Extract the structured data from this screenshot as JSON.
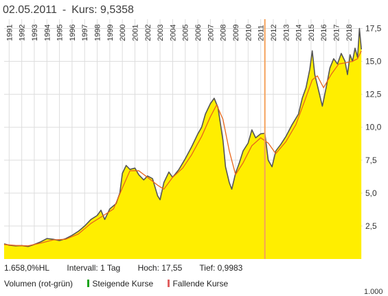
{
  "header": {
    "date": "02.05.2011",
    "separator": "-",
    "price_label": "Kurs: 9,5358"
  },
  "stats": {
    "hl_ratio": "1.658,0%HL",
    "interval": "Intervall: 1 Tag",
    "high": "Hoch:  17,55",
    "low": "Tief: 0,9983"
  },
  "legend": {
    "volume_label": "Volumen (rot-grün)",
    "rising_label": "Steigende Kurse",
    "falling_label": "Fallende Kurse",
    "rising_color": "#1aa31a",
    "falling_color": "#e06060"
  },
  "footer_cutoff": "1.000",
  "colors": {
    "area_fill": "#ffee00",
    "price_line": "#555555",
    "moving_average": "#e8661a",
    "cursor": "#f4a15a",
    "grid": "#dddddd"
  },
  "chart_data": {
    "type": "area",
    "title": "",
    "xlabel": "",
    "ylabel": "",
    "x_ticks": [
      "1991",
      "1992",
      "1993",
      "1994",
      "1995",
      "1996",
      "1997",
      "1998",
      "1999",
      "2000",
      "2001",
      "2002",
      "2003",
      "2004",
      "2005",
      "2006",
      "2007",
      "2008",
      "2009",
      "2010",
      "2011",
      "2012",
      "2013",
      "2014",
      "2015",
      "2016",
      "2017",
      "2018"
    ],
    "y_ticks": [
      "2,5",
      "5,0",
      "7,5",
      "10,0",
      "12,5",
      "15,0",
      "17,5"
    ],
    "y_tick_values": [
      2.5,
      5.0,
      7.5,
      10.0,
      12.5,
      15.0,
      17.5
    ],
    "xlim": [
      1990.6,
      2019.1
    ],
    "ylim": [
      0,
      18.2
    ],
    "grid": true,
    "cursor_x": 2011.33,
    "series": [
      {
        "values": [
          [
            1990.6,
            1.15
          ],
          [
            1991.0,
            1.05
          ],
          [
            1991.5,
            1.0
          ],
          [
            1992.0,
            1.02
          ],
          [
            1992.5,
            0.95
          ],
          [
            1993.0,
            1.1
          ],
          [
            1993.5,
            1.3
          ],
          [
            1994.0,
            1.55
          ],
          [
            1994.5,
            1.5
          ],
          [
            1995.0,
            1.4
          ],
          [
            1995.5,
            1.55
          ],
          [
            1996.0,
            1.8
          ],
          [
            1996.5,
            2.1
          ],
          [
            1997.0,
            2.5
          ],
          [
            1997.5,
            3.0
          ],
          [
            1998.0,
            3.3
          ],
          [
            1998.3,
            3.7
          ],
          [
            1998.6,
            3.0
          ],
          [
            1999.0,
            3.8
          ],
          [
            1999.5,
            4.2
          ],
          [
            1999.8,
            5.0
          ],
          [
            2000.0,
            6.5
          ],
          [
            2000.3,
            7.1
          ],
          [
            2000.6,
            6.8
          ],
          [
            2001.0,
            6.9
          ],
          [
            2001.3,
            6.4
          ],
          [
            2001.7,
            6.0
          ],
          [
            2002.0,
            6.3
          ],
          [
            2002.4,
            6.1
          ],
          [
            2002.8,
            4.8
          ],
          [
            2003.0,
            4.5
          ],
          [
            2003.3,
            5.8
          ],
          [
            2003.7,
            6.6
          ],
          [
            2004.0,
            6.2
          ],
          [
            2004.5,
            6.8
          ],
          [
            2005.0,
            7.6
          ],
          [
            2005.5,
            8.5
          ],
          [
            2006.0,
            9.5
          ],
          [
            2006.3,
            10.0
          ],
          [
            2006.6,
            11.0
          ],
          [
            2007.0,
            11.8
          ],
          [
            2007.3,
            12.2
          ],
          [
            2007.6,
            11.5
          ],
          [
            2008.0,
            9.0
          ],
          [
            2008.2,
            7.0
          ],
          [
            2008.5,
            5.8
          ],
          [
            2008.7,
            5.3
          ],
          [
            2009.0,
            6.5
          ],
          [
            2009.3,
            7.3
          ],
          [
            2009.6,
            8.2
          ],
          [
            2010.0,
            8.8
          ],
          [
            2010.3,
            9.8
          ],
          [
            2010.6,
            9.2
          ],
          [
            2011.0,
            9.5
          ],
          [
            2011.33,
            9.54
          ],
          [
            2011.6,
            7.5
          ],
          [
            2011.9,
            7.0
          ],
          [
            2012.2,
            8.2
          ],
          [
            2012.6,
            8.7
          ],
          [
            2013.0,
            9.3
          ],
          [
            2013.5,
            10.2
          ],
          [
            2014.0,
            11.0
          ],
          [
            2014.3,
            12.2
          ],
          [
            2014.6,
            13.0
          ],
          [
            2014.9,
            14.4
          ],
          [
            2015.1,
            15.8
          ],
          [
            2015.3,
            14.0
          ],
          [
            2015.6,
            12.8
          ],
          [
            2015.9,
            11.6
          ],
          [
            2016.2,
            13.0
          ],
          [
            2016.5,
            14.5
          ],
          [
            2016.8,
            15.2
          ],
          [
            2017.1,
            14.8
          ],
          [
            2017.4,
            15.6
          ],
          [
            2017.7,
            15.0
          ],
          [
            2017.9,
            14.0
          ],
          [
            2018.1,
            15.5
          ],
          [
            2018.3,
            15.0
          ],
          [
            2018.5,
            16.0
          ],
          [
            2018.7,
            15.3
          ],
          [
            2018.85,
            17.5
          ],
          [
            2019.0,
            15.9
          ]
        ]
      },
      {
        "values": [
          [
            1990.6,
            1.1
          ],
          [
            1991.5,
            1.03
          ],
          [
            1992.5,
            1.0
          ],
          [
            1993.5,
            1.2
          ],
          [
            1994.5,
            1.45
          ],
          [
            1995.5,
            1.5
          ],
          [
            1996.5,
            1.9
          ],
          [
            1997.5,
            2.7
          ],
          [
            1998.5,
            3.3
          ],
          [
            1999.3,
            3.8
          ],
          [
            2000.0,
            5.4
          ],
          [
            2000.6,
            6.7
          ],
          [
            2001.3,
            6.7
          ],
          [
            2002.0,
            6.2
          ],
          [
            2002.8,
            5.6
          ],
          [
            2003.3,
            5.3
          ],
          [
            2004.0,
            6.2
          ],
          [
            2004.8,
            6.9
          ],
          [
            2005.5,
            7.9
          ],
          [
            2006.3,
            9.3
          ],
          [
            2007.0,
            10.8
          ],
          [
            2007.5,
            11.7
          ],
          [
            2008.0,
            10.6
          ],
          [
            2008.5,
            8.2
          ],
          [
            2009.0,
            6.4
          ],
          [
            2009.6,
            7.3
          ],
          [
            2010.3,
            8.6
          ],
          [
            2011.0,
            9.2
          ],
          [
            2011.6,
            8.8
          ],
          [
            2012.2,
            8.0
          ],
          [
            2013.0,
            8.9
          ],
          [
            2013.8,
            10.2
          ],
          [
            2014.5,
            12.0
          ],
          [
            2015.1,
            13.6
          ],
          [
            2015.5,
            13.9
          ],
          [
            2016.0,
            13.0
          ],
          [
            2016.6,
            14.0
          ],
          [
            2017.2,
            14.8
          ],
          [
            2017.8,
            14.9
          ],
          [
            2018.3,
            15.0
          ],
          [
            2018.7,
            15.2
          ],
          [
            2019.0,
            15.8
          ]
        ]
      }
    ]
  }
}
